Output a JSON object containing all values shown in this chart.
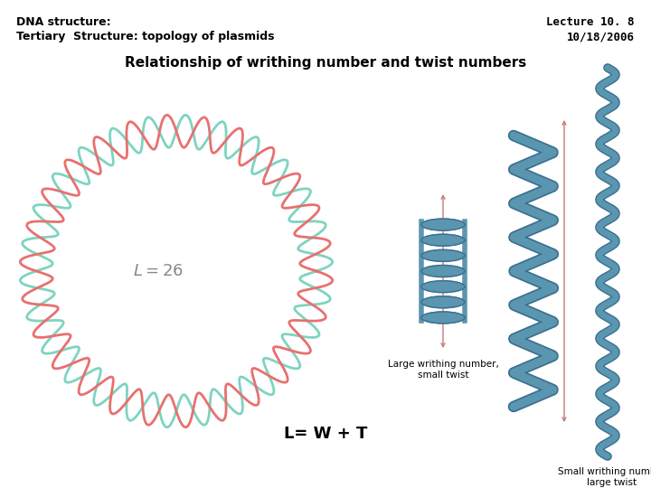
{
  "bg_color": "#ffffff",
  "title_left_line1": "DNA structure:",
  "title_left_line2": "Tertiary  Structure: topology of plasmids",
  "title_right_line1": "Lecture 10. 8",
  "title_right_line2": "10/18/2006",
  "center_title": "Relationship of writhing number and twist numbers",
  "formula": "L= W + T",
  "label_L": "L = 26",
  "label_large_writhing": "Large writhing number,\nsmall twist",
  "label_small_writhing": "Small writhing number\nlarge twist",
  "helix_color1": "#e87070",
  "helix_color2": "#7dd4c0",
  "strand_color": "#5b96b0",
  "strand_dark": "#3a7090",
  "arrow_color": "#c87878"
}
